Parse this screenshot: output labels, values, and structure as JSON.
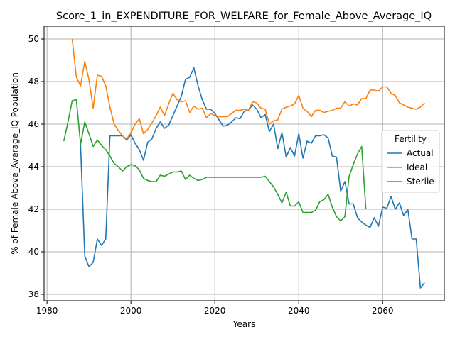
{
  "chart_data": {
    "type": "line",
    "title": "Score_1_in_EXPENDITURE_FOR_WELFARE_for_Female_Above_Average_IQ",
    "xlabel": "Years",
    "ylabel": "% of Female Above_Average_IQ Population",
    "xlim": [
      1979.3,
      2074.7
    ],
    "ylim": [
      37.7,
      50.6
    ],
    "xticks": [
      1980,
      2000,
      2020,
      2040,
      2060
    ],
    "yticks": [
      38,
      40,
      42,
      44,
      46,
      48,
      50
    ],
    "grid": true,
    "legend": {
      "title": "Fertility",
      "placement": "center-right",
      "entries": [
        "Actual",
        "Ideal",
        "Sterile"
      ]
    },
    "series": [
      {
        "name": "Actual",
        "color": "#1f77b4",
        "x": [
          1988,
          1989,
          1990,
          1991,
          1992,
          1993,
          1994,
          1995,
          1996,
          1997,
          1998,
          1999,
          2000,
          2001,
          2002,
          2003,
          2004,
          2005,
          2006,
          2007,
          2008,
          2009,
          2010,
          2011,
          2012,
          2013,
          2014,
          2015,
          2016,
          2017,
          2018,
          2019,
          2020,
          2021,
          2022,
          2023,
          2024,
          2025,
          2026,
          2027,
          2028,
          2029,
          2030,
          2031,
          2032,
          2033,
          2034,
          2035,
          2036,
          2037,
          2038,
          2039,
          2040,
          2041,
          2042,
          2043,
          2044,
          2045,
          2046,
          2047,
          2048,
          2049,
          2050,
          2051,
          2052,
          2053,
          2054,
          2055,
          2056,
          2057,
          2058,
          2059,
          2060,
          2061,
          2062,
          2063,
          2064,
          2065,
          2066,
          2067,
          2068,
          2069,
          2070
        ],
        "values": [
          45.0,
          39.8,
          39.3,
          39.5,
          40.6,
          40.3,
          40.6,
          45.45,
          45.45,
          45.45,
          45.45,
          45.25,
          45.5,
          45.1,
          44.8,
          44.3,
          45.15,
          45.3,
          45.8,
          46.1,
          45.8,
          45.95,
          46.4,
          46.85,
          47.3,
          48.1,
          48.2,
          48.65,
          47.8,
          47.15,
          46.7,
          46.7,
          46.5,
          46.2,
          45.9,
          45.95,
          46.1,
          46.3,
          46.25,
          46.6,
          46.65,
          46.9,
          46.7,
          46.3,
          46.45,
          45.65,
          46.0,
          44.85,
          45.6,
          44.45,
          44.9,
          44.5,
          45.55,
          44.4,
          45.2,
          45.1,
          45.45,
          45.45,
          45.5,
          45.35,
          44.5,
          44.45,
          42.85,
          43.3,
          42.25,
          42.25,
          41.6,
          41.4,
          41.25,
          41.15,
          41.6,
          41.2,
          42.1,
          42.05,
          42.6,
          42.0,
          42.3,
          41.7,
          42.0,
          40.6,
          40.6,
          38.3,
          38.55
        ]
      },
      {
        "name": "Ideal",
        "color": "#ff7f0e",
        "x": [
          1986,
          1987,
          1988,
          1989,
          1990,
          1991,
          1992,
          1993,
          1994,
          1995,
          1996,
          1997,
          1998,
          1999,
          2000,
          2001,
          2002,
          2003,
          2004,
          2005,
          2006,
          2007,
          2008,
          2009,
          2010,
          2011,
          2012,
          2013,
          2014,
          2015,
          2016,
          2017,
          2018,
          2019,
          2020,
          2021,
          2022,
          2023,
          2024,
          2025,
          2026,
          2027,
          2028,
          2029,
          2030,
          2031,
          2032,
          2033,
          2034,
          2035,
          2036,
          2037,
          2038,
          2039,
          2040,
          2041,
          2042,
          2043,
          2044,
          2045,
          2046,
          2047,
          2048,
          2049,
          2050,
          2051,
          2052,
          2053,
          2054,
          2055,
          2056,
          2057,
          2058,
          2059,
          2060,
          2061,
          2062,
          2063,
          2064,
          2065,
          2066,
          2067,
          2068,
          2069,
          2070
        ],
        "values": [
          50.0,
          48.2,
          47.8,
          48.95,
          48.1,
          46.75,
          48.3,
          48.25,
          47.8,
          46.8,
          46.0,
          45.7,
          45.45,
          45.3,
          45.6,
          46.0,
          46.25,
          45.55,
          45.75,
          46.05,
          46.4,
          46.8,
          46.4,
          46.95,
          47.45,
          47.15,
          47.05,
          47.1,
          46.55,
          46.85,
          46.7,
          46.75,
          46.3,
          46.5,
          46.4,
          46.35,
          46.35,
          46.35,
          46.5,
          46.65,
          46.65,
          46.7,
          46.65,
          47.05,
          47.0,
          46.75,
          46.7,
          46.0,
          46.15,
          46.2,
          46.7,
          46.8,
          46.85,
          46.95,
          47.35,
          46.75,
          46.6,
          46.35,
          46.65,
          46.65,
          46.55,
          46.6,
          46.65,
          46.75,
          46.75,
          47.05,
          46.85,
          46.95,
          46.9,
          47.2,
          47.2,
          47.6,
          47.6,
          47.55,
          47.75,
          47.75,
          47.45,
          47.35,
          47.0,
          46.9,
          46.8,
          46.75,
          46.7,
          46.8,
          47.0
        ]
      },
      {
        "name": "Sterile",
        "color": "#2ca02c",
        "x": [
          1984,
          1985,
          1986,
          1987,
          1988,
          1989,
          1990,
          1991,
          1992,
          1993,
          1994,
          1995,
          1996,
          1997,
          1998,
          1999,
          2000,
          2001,
          2002,
          2003,
          2004,
          2005,
          2006,
          2007,
          2008,
          2009,
          2010,
          2011,
          2012,
          2013,
          2014,
          2015,
          2016,
          2017,
          2018,
          2019,
          2020,
          2021,
          2022,
          2023,
          2024,
          2025,
          2026,
          2027,
          2028,
          2029,
          2030,
          2031,
          2032,
          2033,
          2034,
          2035,
          2036,
          2037,
          2038,
          2039,
          2040,
          2041,
          2042,
          2043,
          2044,
          2045,
          2046,
          2047,
          2048,
          2049,
          2050,
          2051,
          2052,
          2053,
          2054,
          2055,
          2056
        ],
        "values": [
          45.2,
          46.1,
          47.1,
          47.15,
          45.05,
          46.1,
          45.55,
          44.95,
          45.25,
          45.0,
          44.8,
          44.5,
          44.15,
          44.0,
          43.8,
          44.0,
          44.1,
          44.05,
          43.85,
          43.45,
          43.35,
          43.3,
          43.3,
          43.6,
          43.55,
          43.65,
          43.75,
          43.75,
          43.8,
          43.4,
          43.6,
          43.45,
          43.35,
          43.4,
          43.5,
          43.5,
          43.5,
          43.5,
          43.5,
          43.5,
          43.5,
          43.5,
          43.5,
          43.5,
          43.5,
          43.5,
          43.5,
          43.5,
          43.55,
          43.3,
          43.05,
          42.7,
          42.3,
          42.8,
          42.15,
          42.15,
          42.35,
          41.85,
          41.85,
          41.85,
          41.95,
          42.35,
          42.45,
          42.7,
          42.1,
          41.65,
          41.45,
          41.65,
          43.55,
          44.1,
          44.6,
          44.95,
          42.0
        ]
      }
    ]
  }
}
